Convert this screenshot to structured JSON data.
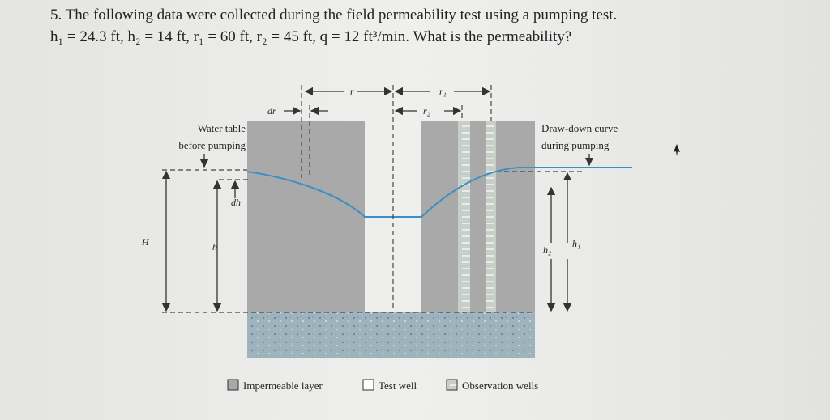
{
  "question": {
    "line1": "5. The following data were collected during the field permeability test using a pumping test.",
    "line2": "h₁ = 24.3 ft, h₂ = 14 ft, r₁ = 60 ft, r₂ = 45 ft, q = 12 ft³/min. What is the permeability?"
  },
  "diagram": {
    "r": "r",
    "r1": "r₁",
    "r2": "r₂",
    "dr": "dr",
    "water_table": [
      "Water table",
      "before pumping"
    ],
    "drawdown": [
      "Draw-down curve",
      "during pumping"
    ],
    "dh": "dh",
    "H": "H",
    "h": "h",
    "h2": "h₂",
    "h1": "h₁"
  },
  "legend": [
    "Impermeable layer",
    "Test well",
    "Observation wells"
  ]
}
